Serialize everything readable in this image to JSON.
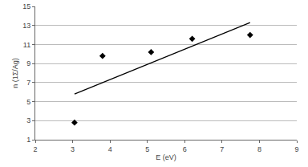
{
  "chart_data": {
    "type": "scatter",
    "x_label": "E (eV)",
    "y_label": "n (1Σ/Ag)",
    "xlim": [
      2,
      9
    ],
    "xticks": [
      2,
      3,
      4,
      5,
      6,
      7,
      8,
      9
    ],
    "ylim": [
      1,
      15
    ],
    "yticks": [
      1,
      3,
      5,
      7,
      9,
      11,
      13,
      15
    ],
    "grid": true,
    "series": [
      {
        "type": "scatter",
        "marker": "diamond",
        "color": "#000000",
        "x": [
          3.05,
          3.8,
          5.1,
          6.2,
          7.75
        ],
        "values": [
          2.8,
          9.8,
          10.2,
          11.6,
          12.0
        ]
      },
      {
        "type": "line",
        "line_style": "solid",
        "color": "#000000",
        "x": [
          3.05,
          7.75
        ],
        "values": [
          5.8,
          13.3
        ]
      }
    ]
  }
}
